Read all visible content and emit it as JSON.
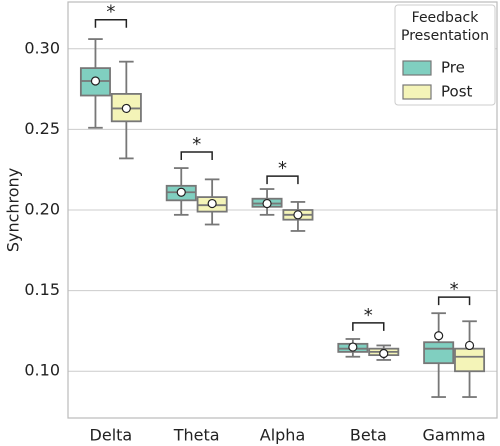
{
  "chart_data": {
    "type": "box",
    "y_label": "Synchrony",
    "categories": [
      "Delta",
      "Theta",
      "Alpha",
      "Beta",
      "Gamma"
    ],
    "legend_title": "Feedback Presentation",
    "legend_position": "upper right",
    "grid": true,
    "ylim": [
      0.071,
      0.329
    ],
    "yticks": [
      {
        "value": 0.1,
        "label": "0.10"
      },
      0.15,
      {
        "value": 0.2,
        "label": "0.20"
      },
      0.25,
      {
        "value": 0.3,
        "label": "0.30"
      }
    ],
    "series": [
      {
        "name": "Pre",
        "color": "#80cfc0",
        "boxes": [
          {
            "min": 0.251,
            "q1": 0.271,
            "median": 0.28,
            "q3": 0.288,
            "max": 0.306,
            "mean": 0.28
          },
          {
            "min": 0.197,
            "q1": 0.206,
            "median": 0.211,
            "q3": 0.215,
            "max": 0.226,
            "mean": 0.211
          },
          {
            "min": 0.197,
            "q1": 0.202,
            "median": 0.204,
            "q3": 0.207,
            "max": 0.213,
            "mean": 0.204
          },
          {
            "min": 0.109,
            "q1": 0.112,
            "median": 0.114,
            "q3": 0.117,
            "max": 0.12,
            "mean": 0.115
          },
          {
            "min": 0.084,
            "q1": 0.105,
            "median": 0.114,
            "q3": 0.118,
            "max": 0.136,
            "mean": 0.122
          }
        ]
      },
      {
        "name": "Post",
        "color": "#f4f4b8",
        "boxes": [
          {
            "min": 0.232,
            "q1": 0.255,
            "median": 0.263,
            "q3": 0.272,
            "max": 0.292,
            "mean": 0.263
          },
          {
            "min": 0.191,
            "q1": 0.199,
            "median": 0.203,
            "q3": 0.208,
            "max": 0.219,
            "mean": 0.204
          },
          {
            "min": 0.187,
            "q1": 0.194,
            "median": 0.197,
            "q3": 0.2,
            "max": 0.205,
            "mean": 0.197
          },
          {
            "min": 0.107,
            "q1": 0.11,
            "median": 0.112,
            "q3": 0.114,
            "max": 0.116,
            "mean": 0.111
          },
          {
            "min": 0.084,
            "q1": 0.1,
            "median": 0.109,
            "q3": 0.114,
            "max": 0.131,
            "mean": 0.116
          }
        ]
      }
    ],
    "annotations": [
      {
        "text": "*",
        "category": "Delta",
        "y": 0.318
      },
      {
        "text": "*",
        "category": "Theta",
        "y": 0.236
      },
      {
        "text": "*",
        "category": "Alpha",
        "y": 0.221
      },
      {
        "text": "*",
        "category": "Beta",
        "y": 0.13
      },
      {
        "text": "*",
        "category": "Gamma",
        "y": 0.146
      }
    ]
  }
}
